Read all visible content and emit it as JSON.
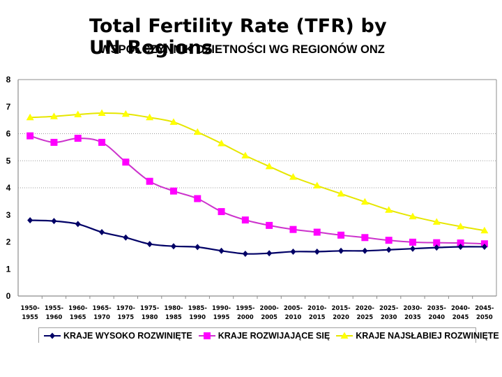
{
  "overlay_title": "Total Fertility Rate (TFR) by UN Regions",
  "chart_data": {
    "type": "line",
    "title": "WSPÓŁCZYNNIK DZIETNOŚCI WG REGIONÓW ONZ",
    "xlabel": "",
    "ylabel": "",
    "ylim": [
      0,
      8
    ],
    "yticks": [
      "0",
      "1",
      "2",
      "3",
      "4",
      "5",
      "6",
      "7",
      "8"
    ],
    "grid": "horizontal dotted at 4, 5, 6",
    "legend_position": "bottom",
    "categories": [
      [
        "1950-",
        "1955"
      ],
      [
        "1955-",
        "1960"
      ],
      [
        "1960-",
        "1965"
      ],
      [
        "1965-",
        "1970"
      ],
      [
        "1970-",
        "1975"
      ],
      [
        "1975-",
        "1980"
      ],
      [
        "1980-",
        "1985"
      ],
      [
        "1985-",
        "1990"
      ],
      [
        "1990-",
        "1995"
      ],
      [
        "1995-",
        "2000"
      ],
      [
        "2000-",
        "2005"
      ],
      [
        "2005-",
        "2010"
      ],
      [
        "2010-",
        "2015"
      ],
      [
        "2015-",
        "2020"
      ],
      [
        "2020-",
        "2025"
      ],
      [
        "2025-",
        "2030"
      ],
      [
        "2030-",
        "2035"
      ],
      [
        "2035-",
        "2040"
      ],
      [
        "2040-",
        "2045"
      ],
      [
        "2045-",
        "2050"
      ]
    ],
    "series": [
      {
        "name": "KRAJE WYSOKO ROZWINIĘTE",
        "color": "#000066",
        "marker": "diamond",
        "values": [
          2.8,
          2.77,
          2.66,
          2.36,
          2.16,
          1.92,
          1.84,
          1.81,
          1.67,
          1.56,
          1.58,
          1.64,
          1.64,
          1.67,
          1.67,
          1.71,
          1.75,
          1.79,
          1.82,
          1.82
        ]
      },
      {
        "name": "KRAJE ROZWIJAJĄCE SIĘ",
        "color": "#ff00ff",
        "line_color": "#cc33cc",
        "marker": "square",
        "values": [
          5.92,
          5.68,
          5.83,
          5.68,
          4.95,
          4.24,
          3.88,
          3.6,
          3.12,
          2.81,
          2.61,
          2.46,
          2.36,
          2.25,
          2.16,
          2.06,
          1.99,
          1.97,
          1.96,
          1.93
        ]
      },
      {
        "name": "KRAJE NAJSŁABIEJ ROZWINIĘTE",
        "color": "#ffff00",
        "line_color": "#e6e600",
        "marker": "triangle",
        "values": [
          6.6,
          6.64,
          6.71,
          6.76,
          6.73,
          6.6,
          6.43,
          6.06,
          5.64,
          5.19,
          4.79,
          4.4,
          4.08,
          3.78,
          3.48,
          3.18,
          2.94,
          2.74,
          2.57,
          2.42
        ]
      }
    ]
  }
}
